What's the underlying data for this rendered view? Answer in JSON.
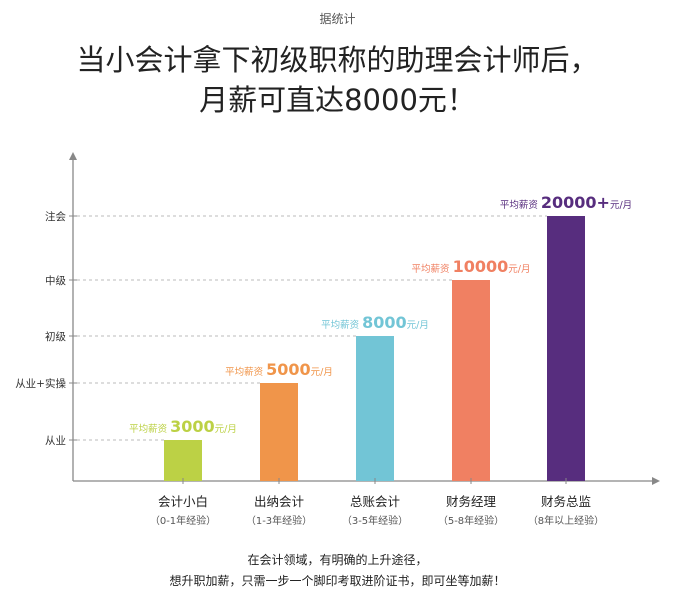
{
  "source": "据统计",
  "headline": {
    "line1": "当小会计拿下初级职称的助理会计师后，",
    "line2": "月薪可直达8000元！"
  },
  "chart_data": {
    "type": "bar",
    "y_levels": [
      "从业",
      "从业+实操",
      "初级",
      "中级",
      "注会"
    ],
    "bars": [
      {
        "category": "会计小白",
        "sub": "（0-1年经验）",
        "level": 0,
        "prefix": "平均薪资",
        "value": "3000",
        "unit": "元/月",
        "color": "#bcd145"
      },
      {
        "category": "出纳会计",
        "sub": "（1-3年经验）",
        "level": 1,
        "prefix": "平均薪资",
        "value": "5000",
        "unit": "元/月",
        "color": "#f0954a"
      },
      {
        "category": "总账会计",
        "sub": "（3-5年经验）",
        "level": 2,
        "prefix": "平均薪资",
        "value": "8000",
        "unit": "元/月",
        "color": "#72c5d6"
      },
      {
        "category": "财务经理",
        "sub": "（5-8年经验）",
        "level": 3,
        "prefix": "平均薪资",
        "value": "10000",
        "unit": "元/月",
        "color": "#f08062"
      },
      {
        "category": "财务总监",
        "sub": "（8年以上经验）",
        "level": 4,
        "prefix": "平均薪资",
        "value": "20000+",
        "unit": "元/月",
        "color": "#572d7e"
      }
    ]
  },
  "footer": {
    "line1": "在会计领域，有明确的上升途径，",
    "line2": "想升职加薪，只需一步一个脚印考取进阶证书，即可坐等加薪！"
  }
}
